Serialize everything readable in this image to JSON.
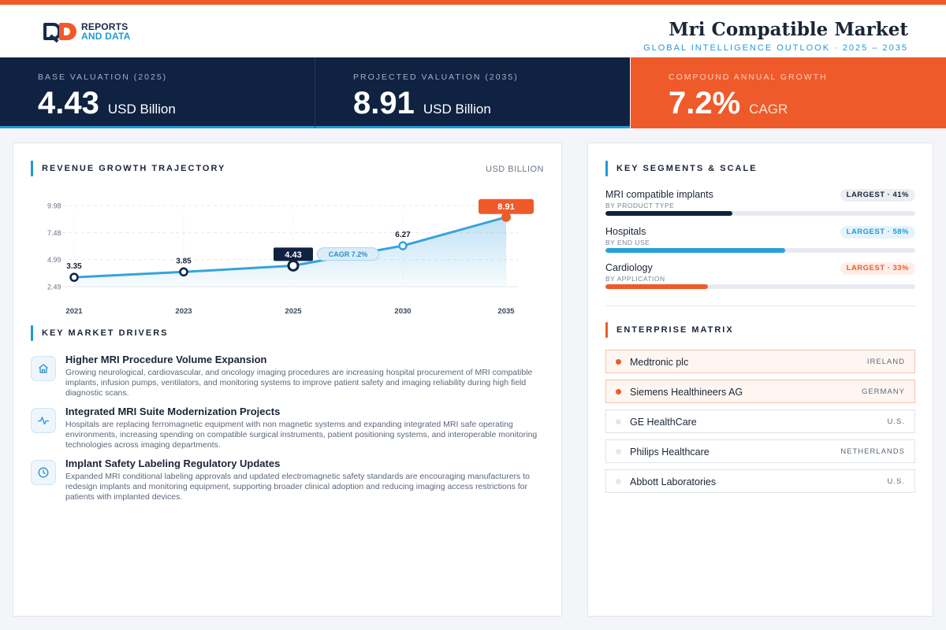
{
  "brand": {
    "line1": "REPORTS",
    "line2": "AND DATA"
  },
  "header": {
    "title": "Mri Compatible Market",
    "subtitle": "GLOBAL INTELLIGENCE OUTLOOK  ·  2025 – 2035"
  },
  "kpis": [
    {
      "label": "BASE VALUATION (2025)",
      "value": "4.43",
      "unit": "USD Billion"
    },
    {
      "label": "PROJECTED VALUATION (2035)",
      "value": "8.91",
      "unit": "USD Billion"
    },
    {
      "label": "COMPOUND ANNUAL GROWTH",
      "value": "7.2%",
      "unit": "CAGR"
    }
  ],
  "trajectory": {
    "title": "REVENUE GROWTH TRAJECTORY",
    "unit": "USD BILLION"
  },
  "chart_data": {
    "type": "area",
    "x": [
      "2021",
      "2023",
      "2025",
      "2030",
      "2035"
    ],
    "values": [
      3.35,
      3.85,
      4.43,
      6.27,
      8.91
    ],
    "value_labels": [
      "3.35",
      "3.85",
      "4.43",
      "6.27",
      "8.91"
    ],
    "yticks": [
      "9.98",
      "7.48",
      "4.99",
      "2.49"
    ],
    "ylim": [
      2.49,
      9.98
    ],
    "annotation": "CAGR 7.2%",
    "grid": true
  },
  "drivers": {
    "title": "KEY MARKET DRIVERS",
    "items": [
      {
        "icon": "home-icon",
        "title": "Higher MRI Procedure Volume Expansion",
        "desc": "Growing neurological, cardiovascular, and oncology imaging procedures are increasing hospital procurement of MRI compatible implants, infusion pumps, ventilators, and monitoring systems to improve patient safety and imaging reliability during high field diagnostic scans."
      },
      {
        "icon": "activity-icon",
        "title": "Integrated MRI Suite Modernization Projects",
        "desc": "Hospitals are replacing ferromagnetic equipment with non magnetic systems and expanding integrated MRI safe operating environments, increasing spending on compatible surgical instruments, patient positioning systems, and interoperable monitoring technologies across imaging departments."
      },
      {
        "icon": "clock-icon",
        "title": "Implant Safety Labeling Regulatory Updates",
        "desc": "Expanded MRI conditional labeling approvals and updated electromagnetic safety standards are encouraging manufacturers to redesign implants and monitoring equipment, supporting broader clinical adoption and reducing imaging access restrictions for patients with implanted devices."
      }
    ]
  },
  "segments": {
    "title": "KEY SEGMENTS & SCALE",
    "items": [
      {
        "name": "MRI compatible implants",
        "sub": "BY PRODUCT TYPE",
        "badge": "LARGEST · 41%",
        "share": 0.41,
        "color": "#0f2242",
        "badge_bg": "#eceff4",
        "badge_fg": "#1b2536"
      },
      {
        "name": "Hospitals",
        "sub": "BY END USE",
        "badge": "LARGEST · 58%",
        "share": 0.58,
        "color": "#2aa0d8",
        "badge_bg": "#e6f3fb",
        "badge_fg": "#1e9bd7"
      },
      {
        "name": "Cardiology",
        "sub": "BY APPLICATION",
        "badge": "LARGEST · 33%",
        "share": 0.33,
        "color": "#ef5a2a",
        "badge_bg": "#fdeee8",
        "badge_fg": "#ef5a2a"
      }
    ]
  },
  "enterprise": {
    "title": "ENTERPRISE MATRIX",
    "items": [
      {
        "name": "Medtronic plc",
        "country": "IRELAND",
        "highlight": true
      },
      {
        "name": "Siemens Healthineers AG",
        "country": "GERMANY",
        "highlight": true
      },
      {
        "name": "GE HealthCare",
        "country": "U.S.",
        "highlight": false
      },
      {
        "name": "Philips Healthcare",
        "country": "NETHERLANDS",
        "highlight": false
      },
      {
        "name": "Abbott Laboratories",
        "country": "U.S.",
        "highlight": false
      }
    ]
  },
  "colors": {
    "accent": "#f05a28",
    "navy": "#0f2242",
    "blue": "#1e9bd7"
  }
}
